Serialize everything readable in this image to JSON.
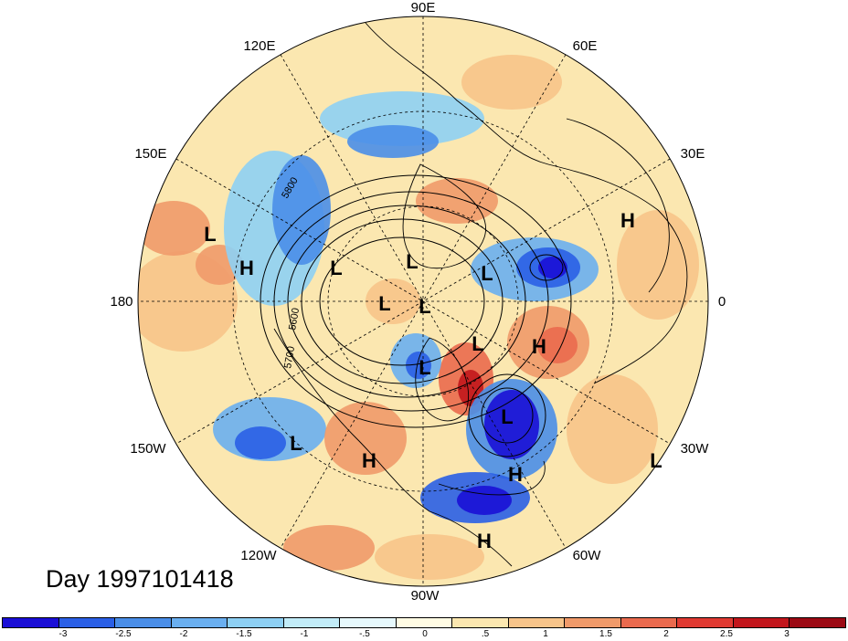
{
  "map": {
    "longitude_labels": [
      "90E",
      "60E",
      "30E",
      "0",
      "30W",
      "60W",
      "90W",
      "120W",
      "150W",
      "180",
      "150E",
      "120E"
    ],
    "contour_labels": [
      "5800",
      "5600",
      "5700"
    ],
    "pressure_centers": [
      {
        "kind": "L"
      },
      {
        "kind": "H"
      },
      {
        "kind": "L"
      },
      {
        "kind": "L"
      },
      {
        "kind": "L"
      },
      {
        "kind": "L"
      },
      {
        "kind": "L"
      },
      {
        "kind": "H"
      },
      {
        "kind": "H"
      },
      {
        "kind": "L"
      },
      {
        "kind": "L"
      },
      {
        "kind": "L"
      },
      {
        "kind": "L"
      },
      {
        "kind": "H"
      },
      {
        "kind": "L"
      },
      {
        "kind": "H"
      },
      {
        "kind": "H"
      }
    ]
  },
  "day_label": "Day 1997101418",
  "colorbar": {
    "colors": [
      "#1a0fd6",
      "#2a5fe6",
      "#4a8ee8",
      "#6aaff0",
      "#8ed0f4",
      "#c2ecf8",
      "#e6f8fc",
      "#fffbe3",
      "#fbe7b0",
      "#f7c48a",
      "#f09a6a",
      "#ea6a4e",
      "#e03a32",
      "#c2161c",
      "#9c0a14"
    ],
    "ticks": [
      "-3",
      "-2.5",
      "-2",
      "-1.5",
      "-1",
      "-.5",
      "0",
      ".5",
      "1",
      "1.5",
      "2",
      "2.5",
      "3"
    ]
  }
}
